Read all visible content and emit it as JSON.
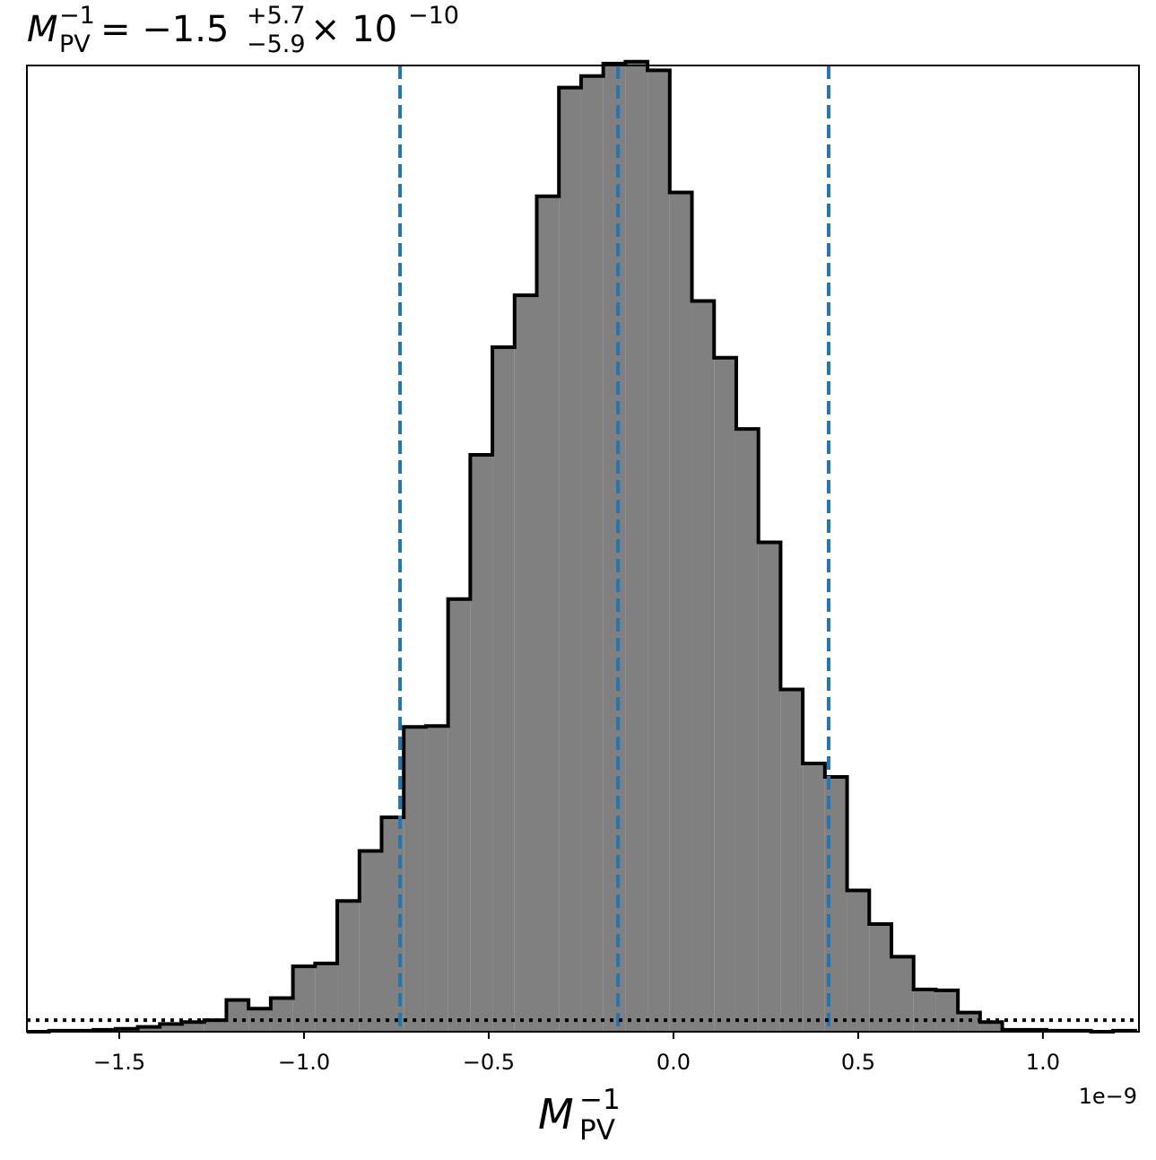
{
  "title": {
    "symbol": "M",
    "symbol_sup": "−1",
    "symbol_sub": "PV",
    "equals_value": " = −1.5",
    "upper_err": "+5.7",
    "lower_err": "−5.9",
    "times_power": " × 10",
    "power": "−10"
  },
  "xlabel": {
    "symbol": "M",
    "sup": "−1",
    "sub": "PV"
  },
  "offset_text": "1e−9",
  "chart_data": {
    "type": "histogram",
    "x_scale_factor": 1e-09,
    "xlim": [
      -1.75,
      1.26
    ],
    "ylim": [
      0,
      1005
    ],
    "y_ticks_shown": false,
    "grid": false,
    "legend": "none",
    "xticks": [
      {
        "value": -1.5,
        "label": "−1.5"
      },
      {
        "value": -1.0,
        "label": "−1.0"
      },
      {
        "value": -0.5,
        "label": "−0.5"
      },
      {
        "value": 0.0,
        "label": "0.0"
      },
      {
        "value": 0.5,
        "label": "0.5"
      },
      {
        "value": 1.0,
        "label": "1.0"
      }
    ],
    "bins": {
      "start": -1.75,
      "width": 0.06,
      "counts": [
        0,
        1,
        1,
        2,
        3,
        5,
        8,
        10,
        12,
        33,
        24,
        35,
        68,
        71,
        136,
        188,
        223,
        317,
        318,
        450,
        600,
        712,
        766,
        869,
        982,
        994,
        1007,
        1009,
        1000,
        873,
        760,
        701,
        627,
        509,
        356,
        279,
        265,
        147,
        112,
        78,
        44,
        43,
        20,
        10,
        2,
        2,
        1,
        1,
        0,
        1
      ]
    },
    "fill_color": "#808080",
    "edge_color": "#000000",
    "quantile_lines": {
      "color": "#1f77b4",
      "style": "dashed",
      "values": [
        -0.74,
        -0.15,
        0.42
      ]
    },
    "reference_line": {
      "y": 12,
      "style": "dotted",
      "color": "#000000"
    }
  }
}
